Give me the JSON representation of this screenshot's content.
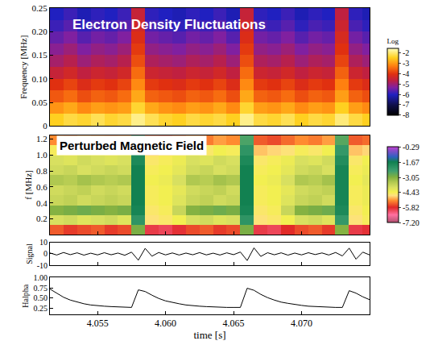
{
  "chart_data": [
    {
      "type": "heatmap",
      "annotation": "Electron Density Fluctuations",
      "y_label": "Frequency [MHz]",
      "tick_labels": "y",
      "xlim": [
        4.0515,
        4.075
      ],
      "xticks": [
        4.055,
        {
          "value": 4.06,
          "label": "4.060"
        },
        4.065,
        {
          "value": 4.07,
          "label": "4.070"
        }
      ],
      "ylim": [
        0,
        0.25
      ],
      "yticks": [
        0,
        0.05,
        {
          "value": 0.1,
          "label": "0.10"
        },
        0.15,
        {
          "value": 0.2,
          "label": "0.20"
        },
        0.25
      ],
      "colorbar_title": "Log",
      "zlim": [
        -8,
        -1.5
      ],
      "zticks": [
        -2,
        -3,
        -4,
        -5,
        -6,
        -7,
        -8
      ],
      "x": [
        4.052,
        4.053,
        4.054,
        4.055,
        4.056,
        4.057,
        4.058,
        4.059,
        4.06,
        4.061,
        4.062,
        4.063,
        4.064,
        4.065,
        4.066,
        4.067,
        4.068,
        4.069,
        4.07,
        4.071,
        4.072,
        4.073,
        4.074,
        4.075
      ],
      "y": [
        0.0125,
        0.0375,
        0.0625,
        0.0875,
        0.1125,
        0.1375,
        0.1625,
        0.1875,
        0.2125,
        0.2375
      ],
      "z": [
        [
          -2.4,
          -2.2,
          -2.3,
          -2.1,
          -2.3,
          -2.2,
          -1.8,
          -2.1,
          -2.3,
          -2.4,
          -2.2,
          -2.3,
          -2.2,
          -2.4,
          -1.8,
          -2.2,
          -2.3,
          -2.1,
          -2.4,
          -2.2,
          -2.3,
          -1.9,
          -2.2,
          -2.4
        ],
        [
          -3.0,
          -2.8,
          -3.1,
          -2.9,
          -3.0,
          -2.9,
          -2.3,
          -2.8,
          -3.0,
          -3.1,
          -2.9,
          -3.0,
          -2.8,
          -3.1,
          -2.3,
          -2.9,
          -3.0,
          -2.8,
          -3.1,
          -2.9,
          -3.0,
          -2.4,
          -2.9,
          -3.1
        ],
        [
          -3.6,
          -3.4,
          -3.7,
          -3.5,
          -3.6,
          -3.4,
          -2.8,
          -3.5,
          -3.6,
          -3.7,
          -3.5,
          -3.6,
          -3.4,
          -3.7,
          -2.8,
          -3.5,
          -3.6,
          -3.4,
          -3.7,
          -3.5,
          -3.6,
          -2.9,
          -3.5,
          -3.7
        ],
        [
          -4.0,
          -3.8,
          -4.1,
          -3.9,
          -4.0,
          -3.8,
          -3.1,
          -3.9,
          -4.0,
          -4.1,
          -3.9,
          -4.0,
          -3.8,
          -4.1,
          -3.1,
          -3.9,
          -4.0,
          -3.8,
          -4.1,
          -3.9,
          -4.0,
          -3.2,
          -3.9,
          -4.1
        ],
        [
          -4.5,
          -4.3,
          -4.6,
          -4.4,
          -4.5,
          -4.3,
          -3.4,
          -4.4,
          -4.5,
          -4.6,
          -4.4,
          -4.5,
          -4.3,
          -4.6,
          -3.4,
          -4.4,
          -4.5,
          -4.3,
          -4.6,
          -4.4,
          -4.5,
          -3.5,
          -4.4,
          -4.6
        ],
        [
          -4.9,
          -4.7,
          -5.0,
          -4.8,
          -4.9,
          -4.7,
          -3.7,
          -4.8,
          -4.9,
          -5.0,
          -4.8,
          -4.9,
          -4.7,
          -5.0,
          -3.7,
          -4.8,
          -4.9,
          -4.7,
          -5.0,
          -4.8,
          -4.9,
          -3.8,
          -4.8,
          -5.0
        ],
        [
          -5.2,
          -5.0,
          -5.3,
          -5.1,
          -5.2,
          -5.0,
          -3.9,
          -5.1,
          -5.2,
          -5.3,
          -5.1,
          -5.2,
          -5.0,
          -5.3,
          -3.9,
          -5.1,
          -5.2,
          -5.0,
          -5.3,
          -5.1,
          -5.2,
          -4.0,
          -5.1,
          -5.3
        ],
        [
          -5.5,
          -5.3,
          -5.6,
          -5.4,
          -5.5,
          -5.3,
          -4.1,
          -5.4,
          -5.5,
          -5.6,
          -5.4,
          -5.5,
          -5.3,
          -5.6,
          -4.1,
          -5.4,
          -5.5,
          -5.3,
          -5.6,
          -5.4,
          -5.5,
          -4.2,
          -5.4,
          -5.6
        ],
        [
          -5.8,
          -5.6,
          -5.9,
          -5.7,
          -5.8,
          -5.6,
          -4.3,
          -5.7,
          -5.8,
          -5.9,
          -5.7,
          -5.8,
          -5.6,
          -5.9,
          -4.3,
          -5.7,
          -5.8,
          -5.6,
          -5.9,
          -5.7,
          -5.8,
          -4.4,
          -5.7,
          -5.9
        ],
        [
          -6.0,
          -5.8,
          -6.1,
          -5.9,
          -6.0,
          -5.8,
          -4.5,
          -5.9,
          -6.0,
          -6.1,
          -5.9,
          -6.0,
          -5.8,
          -6.1,
          -4.5,
          -5.9,
          -6.0,
          -5.8,
          -6.1,
          -5.9,
          -6.0,
          -4.6,
          -5.9,
          -6.1
        ]
      ]
    },
    {
      "type": "heatmap",
      "annotation": "Perturbed Magnetic Field",
      "y_label": "f [MHz]",
      "tick_labels": "y",
      "xlim": [
        4.0515,
        4.075
      ],
      "xticks": [
        4.055,
        {
          "value": 4.06,
          "label": "4.060"
        },
        4.065,
        {
          "value": 4.07,
          "label": "4.070"
        }
      ],
      "ylim": [
        0,
        1.25
      ],
      "yticks": [
        0.2,
        0.4,
        0.6,
        0.8,
        {
          "value": 1,
          "label": "1.0"
        },
        1.2
      ],
      "zlim": [
        -7.2,
        -0.29
      ],
      "zticks": [
        -0.29,
        -1.67,
        -3.05,
        -4.43,
        -5.82,
        {
          "value": -7.2,
          "label": "-7.20"
        }
      ],
      "x": [
        4.052,
        4.053,
        4.054,
        4.055,
        4.056,
        4.057,
        4.058,
        4.059,
        4.06,
        4.061,
        4.062,
        4.063,
        4.064,
        4.065,
        4.066,
        4.067,
        4.068,
        4.069,
        4.07,
        4.071,
        4.072,
        4.073,
        4.074,
        4.075
      ],
      "y": [
        0.0625,
        0.1875,
        0.3125,
        0.4375,
        0.5625,
        0.6875,
        0.8125,
        0.9375,
        1.0625,
        1.1875
      ],
      "z": [
        [
          -5.5,
          -5.7,
          -5.6,
          -5.5,
          -5.7,
          -5.6,
          -3.0,
          -6.0,
          -6.1,
          -5.9,
          -5.6,
          -5.5,
          -5.7,
          -5.6,
          -3.0,
          -6.0,
          -6.1,
          -5.8,
          -5.6,
          -5.5,
          -5.7,
          -3.1,
          -6.0,
          -5.9
        ],
        [
          -4.0,
          -3.9,
          -4.1,
          -4.0,
          -3.9,
          -4.1,
          -2.2,
          -4.7,
          -4.6,
          -4.4,
          -4.0,
          -3.9,
          -4.1,
          -4.0,
          -2.2,
          -4.7,
          -4.6,
          -4.4,
          -4.0,
          -3.9,
          -4.1,
          -2.3,
          -4.7,
          -4.5
        ],
        [
          -3.1,
          -3.0,
          -2.9,
          -3.0,
          -3.1,
          -3.0,
          -1.8,
          -4.6,
          -4.5,
          -3.8,
          -3.1,
          -3.0,
          -2.9,
          -3.0,
          -1.8,
          -4.6,
          -4.5,
          -3.8,
          -3.1,
          -3.0,
          -2.9,
          -1.9,
          -4.6,
          -4.4
        ],
        [
          -3.8,
          -3.7,
          -3.9,
          -3.8,
          -3.7,
          -3.8,
          -1.7,
          -4.5,
          -4.4,
          -4.1,
          -3.8,
          -3.7,
          -3.9,
          -3.8,
          -1.7,
          -4.5,
          -4.4,
          -4.1,
          -3.8,
          -3.7,
          -3.9,
          -1.8,
          -4.5,
          -4.3
        ],
        [
          -3.9,
          -3.8,
          -3.7,
          -3.9,
          -3.8,
          -3.9,
          -1.7,
          -4.5,
          -4.4,
          -4.2,
          -3.9,
          -3.8,
          -3.7,
          -3.9,
          -1.7,
          -4.5,
          -4.4,
          -4.2,
          -3.9,
          -3.8,
          -3.7,
          -1.8,
          -4.5,
          -4.3
        ],
        [
          -3.5,
          -3.6,
          -3.4,
          -3.5,
          -3.6,
          -3.5,
          -1.7,
          -4.4,
          -4.3,
          -4.0,
          -3.5,
          -3.6,
          -3.4,
          -3.5,
          -1.7,
          -4.4,
          -4.3,
          -4.0,
          -3.5,
          -3.6,
          -3.4,
          -1.8,
          -4.4,
          -4.2
        ],
        [
          -3.9,
          -3.8,
          -4.0,
          -3.9,
          -3.8,
          -3.9,
          -1.7,
          -4.5,
          -4.4,
          -4.2,
          -3.9,
          -3.8,
          -4.0,
          -3.9,
          -1.7,
          -4.5,
          -4.4,
          -4.2,
          -3.9,
          -3.8,
          -4.0,
          -1.8,
          -4.5,
          -4.3
        ],
        [
          -4.0,
          -4.1,
          -3.9,
          -4.0,
          -4.1,
          -4.0,
          -1.9,
          -4.6,
          -4.5,
          -4.3,
          -4.0,
          -4.1,
          -3.9,
          -4.0,
          -1.9,
          -4.6,
          -4.5,
          -4.3,
          -4.0,
          -4.1,
          -3.9,
          -2.0,
          -4.6,
          -4.4
        ],
        [
          -4.5,
          -4.6,
          -4.4,
          -4.5,
          -4.6,
          -4.5,
          -2.2,
          -4.9,
          -4.8,
          -4.7,
          -4.5,
          -4.6,
          -4.4,
          -4.5,
          -2.2,
          -4.9,
          -4.8,
          -4.7,
          -4.5,
          -4.6,
          -4.4,
          -2.3,
          -4.9,
          -4.8
        ],
        [
          -5.2,
          -5.3,
          -5.1,
          -5.2,
          -5.3,
          -5.2,
          -2.6,
          -5.5,
          -5.6,
          -5.4,
          -5.2,
          -5.3,
          -5.1,
          -5.2,
          -2.6,
          -5.5,
          -5.6,
          -5.4,
          -5.2,
          -5.3,
          -5.1,
          -2.7,
          -5.5,
          -5.4
        ]
      ]
    },
    {
      "type": "line",
      "y_label": "Signal",
      "tick_labels": "y",
      "color": "#000000",
      "xlim": [
        4.0515,
        4.075
      ],
      "xticks": [
        4.055,
        {
          "value": 4.06,
          "label": "4.060"
        },
        4.065,
        {
          "value": 4.07,
          "label": "4.070"
        }
      ],
      "ylim": [
        -10,
        10
      ],
      "yticks": [
        -10,
        0,
        10
      ],
      "x": [
        4.0515,
        4.052,
        4.0525,
        4.053,
        4.0535,
        4.054,
        4.0545,
        4.055,
        4.0555,
        4.056,
        4.0565,
        4.057,
        4.0575,
        4.058,
        4.0585,
        4.059,
        4.0595,
        4.06,
        4.0605,
        4.061,
        4.0615,
        4.062,
        4.0625,
        4.063,
        4.0635,
        4.064,
        4.0645,
        4.065,
        4.0655,
        4.066,
        4.0665,
        4.067,
        4.0675,
        4.068,
        4.0685,
        4.069,
        4.0695,
        4.07,
        4.0705,
        4.071,
        4.0715,
        4.072,
        4.0725,
        4.073,
        4.0735,
        4.074,
        4.0745,
        4.075
      ],
      "values": [
        0.8,
        -1.0,
        1.2,
        -0.7,
        0.9,
        -1.1,
        0.6,
        -0.9,
        1.0,
        -0.8,
        0.7,
        -1.2,
        1.5,
        -5.5,
        4.8,
        -2.0,
        1.2,
        -0.9,
        0.8,
        -1.0,
        0.7,
        -0.8,
        1.1,
        -0.9,
        0.6,
        -1.0,
        0.9,
        -0.7,
        1.6,
        -5.8,
        5.2,
        -2.2,
        1.0,
        -0.8,
        0.9,
        -1.1,
        0.7,
        -0.9,
        1.0,
        -0.6,
        0.8,
        -1.0,
        1.2,
        -1.8,
        5.0,
        -4.6,
        1.5,
        -0.9
      ]
    },
    {
      "type": "line",
      "y_label": "Halpha",
      "x_label": "time [s]",
      "color": "#000000",
      "xlim": [
        4.0515,
        4.075
      ],
      "xticks": [
        4.055,
        {
          "value": 4.06,
          "label": "4.060"
        },
        4.065,
        {
          "value": 4.07,
          "label": "4.070"
        }
      ],
      "ylim": [
        0.1,
        1.0
      ],
      "yticks": [
        0.25,
        {
          "value": 0.5,
          "label": "0.50"
        },
        0.75,
        {
          "value": 1,
          "label": "1.00"
        }
      ],
      "x": [
        4.0515,
        4.052,
        4.0525,
        4.053,
        4.0535,
        4.054,
        4.0545,
        4.055,
        4.0555,
        4.056,
        4.0565,
        4.057,
        4.0575,
        4.058,
        4.0585,
        4.059,
        4.0595,
        4.06,
        4.0605,
        4.061,
        4.0615,
        4.062,
        4.0625,
        4.063,
        4.0635,
        4.064,
        4.0645,
        4.065,
        4.0655,
        4.066,
        4.0665,
        4.067,
        4.0675,
        4.068,
        4.0685,
        4.069,
        4.0695,
        4.07,
        4.0705,
        4.071,
        4.0715,
        4.072,
        4.0725,
        4.073,
        4.0735,
        4.074,
        4.0745,
        4.075
      ],
      "values": [
        0.72,
        0.62,
        0.52,
        0.45,
        0.4,
        0.36,
        0.33,
        0.31,
        0.3,
        0.29,
        0.28,
        0.28,
        0.27,
        0.7,
        0.66,
        0.57,
        0.49,
        0.43,
        0.39,
        0.36,
        0.33,
        0.31,
        0.3,
        0.29,
        0.28,
        0.28,
        0.27,
        0.27,
        0.27,
        0.74,
        0.69,
        0.59,
        0.51,
        0.45,
        0.4,
        0.37,
        0.34,
        0.32,
        0.3,
        0.29,
        0.28,
        0.28,
        0.27,
        0.27,
        0.68,
        0.62,
        0.53,
        0.46
      ]
    }
  ]
}
